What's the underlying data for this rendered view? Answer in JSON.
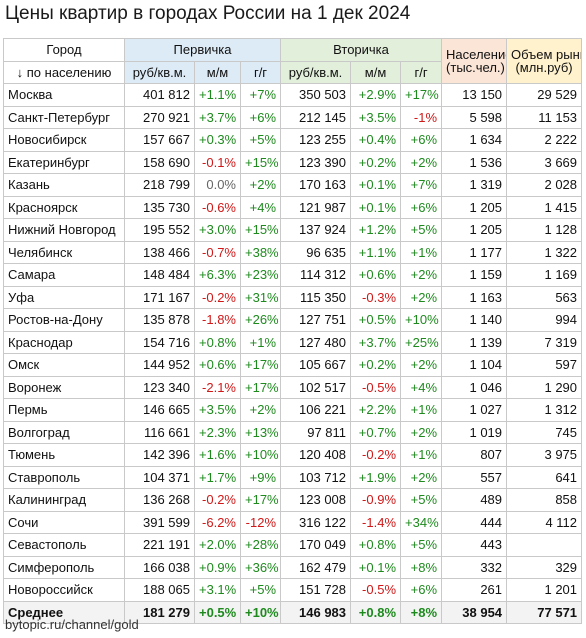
{
  "title": "Цены квартир в городах России на 1 дек 2024",
  "header": {
    "city_top": "Город",
    "city_sub": "↓ по населению",
    "primary": "Первичка",
    "secondary": "Вторичка",
    "population": "Население",
    "population_unit": "(тыс.чел.)",
    "market": "Объем рынка",
    "market_unit": "(млн.руб)",
    "price_unit": "руб/кв.м.",
    "mom": "м/м",
    "yoy": "г/г"
  },
  "rows": [
    {
      "city": "Москва",
      "p_price": "401 812",
      "p_mom": "+1.1%",
      "p_yoy": "+7%",
      "s_price": "350 503",
      "s_mom": "+2.9%",
      "s_yoy": "+17%",
      "pop": "13 150",
      "market": "29 529"
    },
    {
      "city": "Санкт-Петербург",
      "p_price": "270 921",
      "p_mom": "+3.7%",
      "p_yoy": "+6%",
      "s_price": "212 145",
      "s_mom": "+3.5%",
      "s_yoy": "-1%",
      "pop": "5 598",
      "market": "11 153"
    },
    {
      "city": "Новосибирск",
      "p_price": "157 667",
      "p_mom": "+0.3%",
      "p_yoy": "+5%",
      "s_price": "123 255",
      "s_mom": "+0.4%",
      "s_yoy": "+6%",
      "pop": "1 634",
      "market": "2 222"
    },
    {
      "city": "Екатеринбург",
      "p_price": "158 690",
      "p_mom": "-0.1%",
      "p_yoy": "+15%",
      "s_price": "123 390",
      "s_mom": "+0.2%",
      "s_yoy": "+2%",
      "pop": "1 536",
      "market": "3 669"
    },
    {
      "city": "Казань",
      "p_price": "218 799",
      "p_mom": "0.0%",
      "p_yoy": "+2%",
      "s_price": "170 163",
      "s_mom": "+0.1%",
      "s_yoy": "+7%",
      "pop": "1 319",
      "market": "2 028"
    },
    {
      "city": "Красноярск",
      "p_price": "135 730",
      "p_mom": "-0.6%",
      "p_yoy": "+4%",
      "s_price": "121 987",
      "s_mom": "+0.1%",
      "s_yoy": "+6%",
      "pop": "1 205",
      "market": "1 415"
    },
    {
      "city": "Нижний Новгород",
      "p_price": "195 552",
      "p_mom": "+3.0%",
      "p_yoy": "+15%",
      "s_price": "137 924",
      "s_mom": "+1.2%",
      "s_yoy": "+5%",
      "pop": "1 205",
      "market": "1 128"
    },
    {
      "city": "Челябинск",
      "p_price": "138 466",
      "p_mom": "-0.7%",
      "p_yoy": "+38%",
      "s_price": "96 635",
      "s_mom": "+1.1%",
      "s_yoy": "+1%",
      "pop": "1 177",
      "market": "1 322"
    },
    {
      "city": "Самара",
      "p_price": "148 484",
      "p_mom": "+6.3%",
      "p_yoy": "+23%",
      "s_price": "114 312",
      "s_mom": "+0.6%",
      "s_yoy": "+2%",
      "pop": "1 159",
      "market": "1 169"
    },
    {
      "city": "Уфа",
      "p_price": "171 167",
      "p_mom": "-0.2%",
      "p_yoy": "+31%",
      "s_price": "115 350",
      "s_mom": "-0.3%",
      "s_yoy": "+2%",
      "pop": "1 163",
      "market": "563"
    },
    {
      "city": "Ростов-на-Дону",
      "p_price": "135 878",
      "p_mom": "-1.8%",
      "p_yoy": "+26%",
      "s_price": "127 751",
      "s_mom": "+0.5%",
      "s_yoy": "+10%",
      "pop": "1 140",
      "market": "994"
    },
    {
      "city": "Краснодар",
      "p_price": "154 716",
      "p_mom": "+0.8%",
      "p_yoy": "+1%",
      "s_price": "127 480",
      "s_mom": "+3.7%",
      "s_yoy": "+25%",
      "pop": "1 139",
      "market": "7 319"
    },
    {
      "city": "Омск",
      "p_price": "144 952",
      "p_mom": "+0.6%",
      "p_yoy": "+17%",
      "s_price": "105 667",
      "s_mom": "+0.2%",
      "s_yoy": "+2%",
      "pop": "1 104",
      "market": "597"
    },
    {
      "city": "Воронеж",
      "p_price": "123 340",
      "p_mom": "-2.1%",
      "p_yoy": "+17%",
      "s_price": "102 517",
      "s_mom": "-0.5%",
      "s_yoy": "+4%",
      "pop": "1 046",
      "market": "1 290"
    },
    {
      "city": "Пермь",
      "p_price": "146 665",
      "p_mom": "+3.5%",
      "p_yoy": "+2%",
      "s_price": "106 221",
      "s_mom": "+2.2%",
      "s_yoy": "+1%",
      "pop": "1 027",
      "market": "1 312"
    },
    {
      "city": "Волгоград",
      "p_price": "116 661",
      "p_mom": "+2.3%",
      "p_yoy": "+13%",
      "s_price": "97 811",
      "s_mom": "+0.7%",
      "s_yoy": "+2%",
      "pop": "1 019",
      "market": "745"
    },
    {
      "city": "Тюмень",
      "p_price": "142 396",
      "p_mom": "+1.6%",
      "p_yoy": "+10%",
      "s_price": "120 408",
      "s_mom": "-0.2%",
      "s_yoy": "+1%",
      "pop": "807",
      "market": "3 975"
    },
    {
      "city": "Ставрополь",
      "p_price": "104 371",
      "p_mom": "+1.7%",
      "p_yoy": "+9%",
      "s_price": "103 712",
      "s_mom": "+1.9%",
      "s_yoy": "+2%",
      "pop": "557",
      "market": "641"
    },
    {
      "city": "Калининград",
      "p_price": "136 268",
      "p_mom": "-0.2%",
      "p_yoy": "+17%",
      "s_price": "123 008",
      "s_mom": "-0.9%",
      "s_yoy": "+5%",
      "pop": "489",
      "market": "858"
    },
    {
      "city": "Сочи",
      "p_price": "391 599",
      "p_mom": "-6.2%",
      "p_yoy": "-12%",
      "s_price": "316 122",
      "s_mom": "-1.4%",
      "s_yoy": "+34%",
      "pop": "444",
      "market": "4 112"
    },
    {
      "city": "Севастополь",
      "p_price": "221 191",
      "p_mom": "+2.0%",
      "p_yoy": "+28%",
      "s_price": "170 049",
      "s_mom": "+0.8%",
      "s_yoy": "+5%",
      "pop": "443",
      "market": ""
    },
    {
      "city": "Симферополь",
      "p_price": "166 038",
      "p_mom": "+0.9%",
      "p_yoy": "+36%",
      "s_price": "162 479",
      "s_mom": "+0.1%",
      "s_yoy": "+8%",
      "pop": "332",
      "market": "329"
    },
    {
      "city": "Новороссийск",
      "p_price": "188 065",
      "p_mom": "+3.1%",
      "p_yoy": "+5%",
      "s_price": "151 728",
      "s_mom": "-0.5%",
      "s_yoy": "+6%",
      "pop": "261",
      "market": "1 201"
    }
  ],
  "average": {
    "city": "Среднее",
    "p_price": "181 279",
    "p_mom": "+0.5%",
    "p_yoy": "+10%",
    "s_price": "146 983",
    "s_mom": "+0.8%",
    "s_yoy": "+8%",
    "pop": "38 954",
    "market": "77 571"
  },
  "colors": {
    "positive": "#1e8a1e",
    "negative": "#d01818",
    "neutral": "#666666"
  },
  "footer": "bytopic.ru/channel/gold"
}
